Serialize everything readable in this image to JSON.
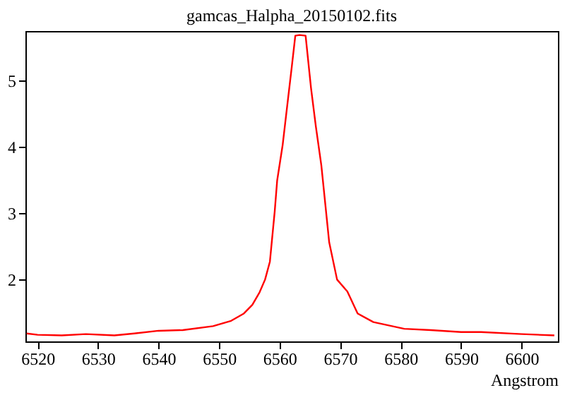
{
  "chart_data": {
    "type": "line",
    "title": "gamcas_Halpha_20150102.fits",
    "xlabel": "Angstrom",
    "x": [
      6518.2,
      6520,
      6524,
      6528,
      6532.7,
      6536,
      6540,
      6544,
      6549,
      6552,
      6554.1,
      6555.5,
      6556.7,
      6557.6,
      6558.4,
      6559.2,
      6559.6,
      6560.5,
      6561.1,
      6562.0,
      6562.6,
      6563.3,
      6564.3,
      6565.2,
      6566.0,
      6566.9,
      6568.2,
      6569.5,
      6571.2,
      6572.9,
      6575.5,
      6580.6,
      6585,
      6590,
      6593.3,
      6600,
      6605.4
    ],
    "series": [
      {
        "color": "#ff0000",
        "values": [
          1.19,
          1.17,
          1.16,
          1.18,
          1.16,
          1.19,
          1.23,
          1.24,
          1.3,
          1.38,
          1.49,
          1.62,
          1.81,
          2.0,
          2.27,
          3.03,
          3.49,
          4.02,
          4.49,
          5.19,
          5.67,
          5.68,
          5.67,
          4.88,
          4.3,
          3.72,
          2.56,
          2.0,
          1.82,
          1.49,
          1.36,
          1.26,
          1.24,
          1.21,
          1.21,
          1.18,
          1.16
        ]
      }
    ],
    "xlim": [
      6518,
      6606
    ],
    "ylim": [
      1.07,
      5.74
    ],
    "xticks": [
      6520,
      6530,
      6540,
      6550,
      6560,
      6570,
      6580,
      6590,
      6600
    ],
    "yticks": [
      2,
      3,
      4,
      5
    ],
    "grid": false,
    "legend": false,
    "marker": "none",
    "line_style": "solid"
  }
}
